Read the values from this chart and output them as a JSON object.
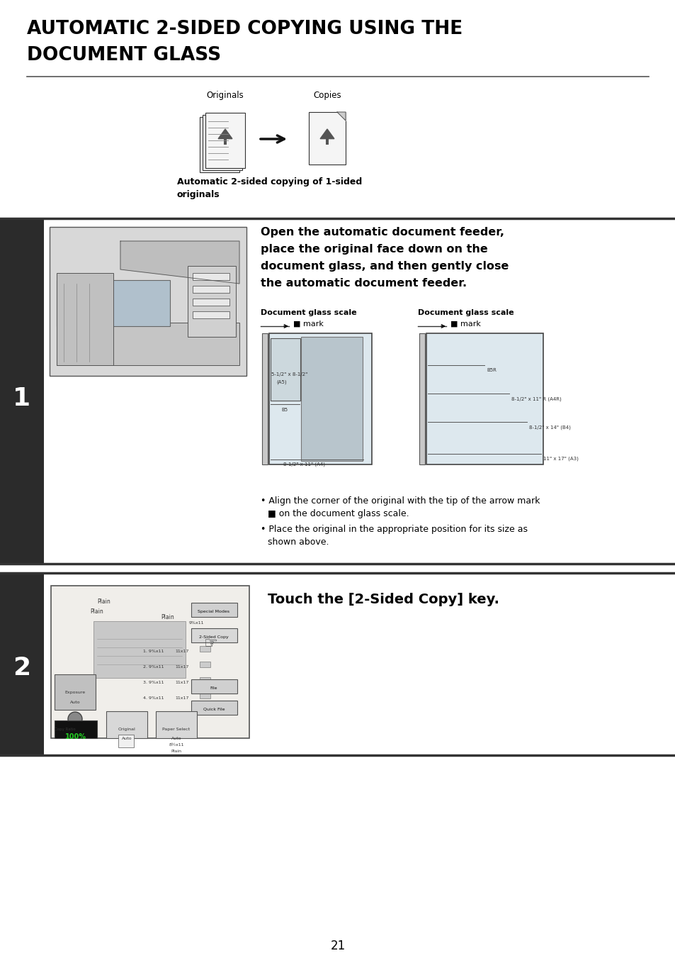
{
  "title_line1": "AUTOMATIC 2-SIDED COPYING USING THE",
  "title_line2": "DOCUMENT GLASS",
  "title_fontsize": 19,
  "page_bg": "#ffffff",
  "section1_step_num": "1",
  "section2_step_num": "2",
  "step_bg": "#2b2b2b",
  "step_text_color": "#ffffff",
  "originals_label": "Originals",
  "copies_label": "Copies",
  "intro_caption_line1": "Automatic 2-sided copying of 1-sided",
  "intro_caption_line2": "originals",
  "step1_heading_line1": "Open the automatic document feeder,",
  "step1_heading_line2": "place the original face down on the",
  "step1_heading_line3": "document glass, and then gently close",
  "step1_heading_line4": "the automatic document feeder.",
  "step1_sub1_title": "Document glass scale",
  "step1_sub2_title": "Document glass scale",
  "mark_text": "■ mark",
  "step1_diagram1_labels": [
    "5-1/2\" x 8-1/2\"",
    "(A5)",
    "B5",
    "8-1/2\" x 11\" (A4)"
  ],
  "step1_diagram2_labels": [
    "B5R",
    "8-1/2\" x 11\" R (A4R)",
    "8-1/2\" x 14\" (B4)",
    "11\" x 17\" (A3)"
  ],
  "step1_bullet1a": "Align the corner of the original with the tip of the arrow mark",
  "step1_bullet1b": "■ on the document glass scale.",
  "step1_bullet2a": "Place the original in the appropriate position for its size as",
  "step1_bullet2b": "shown above.",
  "step2_heading": "Touch the [2-Sided Copy] key.",
  "page_number": "21"
}
